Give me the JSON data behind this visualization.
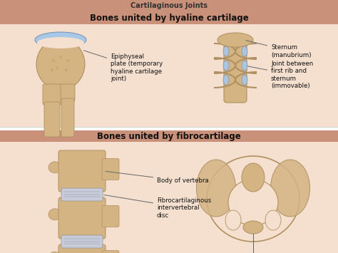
{
  "bg_color": "#ffffff",
  "panel_bg_top": "#f5e0d0",
  "panel_bg_bottom": "#f5e0d0",
  "header_bar_color": "#c9907a",
  "title_top": "Bones united by hyaline cartilage",
  "title_bottom": "Bones united by fibrocartilage",
  "title_fontsize": 8.5,
  "title_fontweight": "bold",
  "label_fontsize": 6.2,
  "label_color": "#111111",
  "top_strip_title": "Cartilaginous Joints",
  "page_bg": "#ffffff",
  "bone_color": "#d4b483",
  "bone_edge": "#b09060",
  "cart_color": "#a8c8e8",
  "cart_edge": "#7090b0",
  "dark_bone": "#c4a070",
  "disc_color": "#c8ccd8",
  "wm_color": "#c0c0c0"
}
